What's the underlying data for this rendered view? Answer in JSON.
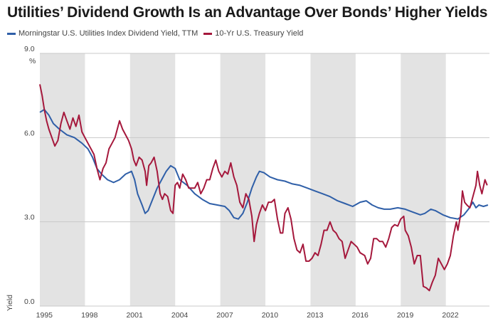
{
  "title": "Utilities’ Dividend Growth Is an Advantage Over Bonds’ Higher Yields",
  "chart_data": {
    "type": "line",
    "title": "Utilities’ Dividend Growth Is an Advantage Over Bonds’ Higher Yields",
    "xlabel": "",
    "ylabel": "Yield",
    "y_unit": "%",
    "xlim": [
      1994.7,
      2024.6
    ],
    "ylim": [
      0,
      9
    ],
    "y_ticks": [
      {
        "value": 0,
        "label": "0.0"
      },
      {
        "value": 3,
        "label": "3.0"
      },
      {
        "value": 6,
        "label": "6.0"
      },
      {
        "value": 9,
        "label": "9.0"
      }
    ],
    "x_ticks": [
      {
        "value": 1995,
        "label": "1995"
      },
      {
        "value": 1998,
        "label": "1998"
      },
      {
        "value": 2001,
        "label": "2001"
      },
      {
        "value": 2004,
        "label": "2004"
      },
      {
        "value": 2007,
        "label": "2007"
      },
      {
        "value": 2010,
        "label": "2010"
      },
      {
        "value": 2013,
        "label": "2013"
      },
      {
        "value": 2016,
        "label": "2016"
      },
      {
        "value": 2019,
        "label": "2019"
      },
      {
        "value": 2022,
        "label": "2022"
      }
    ],
    "shaded_bands": [
      [
        1994.7,
        1997.7
      ],
      [
        2000.7,
        2003.7
      ],
      [
        2006.7,
        2009.7
      ],
      [
        2012.7,
        2015.7
      ],
      [
        2018.7,
        2021.7
      ]
    ],
    "grid": "horizontal",
    "legend_position": "top-left",
    "series": [
      {
        "name": "Morningstar U.S. Utilities Index Dividend Yield, TTM",
        "color": "#2f5fa8",
        "points": [
          [
            1994.7,
            6.9
          ],
          [
            1995.0,
            7.0
          ],
          [
            1995.3,
            6.8
          ],
          [
            1995.6,
            6.5
          ],
          [
            1996.0,
            6.3
          ],
          [
            1996.5,
            6.1
          ],
          [
            1997.0,
            6.0
          ],
          [
            1997.5,
            5.8
          ],
          [
            1997.9,
            5.6
          ],
          [
            1998.2,
            5.3
          ],
          [
            1998.5,
            4.9
          ],
          [
            1998.8,
            4.7
          ],
          [
            1999.2,
            4.5
          ],
          [
            1999.6,
            4.4
          ],
          [
            2000.0,
            4.5
          ],
          [
            2000.4,
            4.7
          ],
          [
            2000.8,
            4.8
          ],
          [
            2001.0,
            4.5
          ],
          [
            2001.2,
            4.0
          ],
          [
            2001.5,
            3.6
          ],
          [
            2001.7,
            3.3
          ],
          [
            2001.9,
            3.4
          ],
          [
            2002.2,
            3.8
          ],
          [
            2002.5,
            4.2
          ],
          [
            2002.8,
            4.5
          ],
          [
            2003.1,
            4.8
          ],
          [
            2003.4,
            5.0
          ],
          [
            2003.7,
            4.9
          ],
          [
            2004.0,
            4.5
          ],
          [
            2004.5,
            4.3
          ],
          [
            2005.0,
            4.0
          ],
          [
            2005.5,
            3.8
          ],
          [
            2006.0,
            3.65
          ],
          [
            2006.5,
            3.6
          ],
          [
            2007.0,
            3.55
          ],
          [
            2007.3,
            3.4
          ],
          [
            2007.6,
            3.15
          ],
          [
            2007.9,
            3.1
          ],
          [
            2008.2,
            3.3
          ],
          [
            2008.5,
            3.7
          ],
          [
            2008.8,
            4.2
          ],
          [
            2009.1,
            4.6
          ],
          [
            2009.3,
            4.8
          ],
          [
            2009.6,
            4.75
          ],
          [
            2010.0,
            4.6
          ],
          [
            2010.5,
            4.5
          ],
          [
            2011.0,
            4.45
          ],
          [
            2011.5,
            4.35
          ],
          [
            2012.0,
            4.3
          ],
          [
            2012.5,
            4.2
          ],
          [
            2013.0,
            4.1
          ],
          [
            2013.5,
            4.0
          ],
          [
            2014.0,
            3.9
          ],
          [
            2014.5,
            3.75
          ],
          [
            2015.0,
            3.65
          ],
          [
            2015.5,
            3.55
          ],
          [
            2016.0,
            3.7
          ],
          [
            2016.4,
            3.75
          ],
          [
            2016.8,
            3.6
          ],
          [
            2017.2,
            3.5
          ],
          [
            2017.6,
            3.45
          ],
          [
            2018.0,
            3.45
          ],
          [
            2018.5,
            3.5
          ],
          [
            2019.0,
            3.45
          ],
          [
            2019.5,
            3.35
          ],
          [
            2020.0,
            3.25
          ],
          [
            2020.3,
            3.3
          ],
          [
            2020.7,
            3.45
          ],
          [
            2021.0,
            3.4
          ],
          [
            2021.5,
            3.25
          ],
          [
            2022.0,
            3.15
          ],
          [
            2022.5,
            3.1
          ],
          [
            2022.9,
            3.25
          ],
          [
            2023.2,
            3.45
          ],
          [
            2023.5,
            3.7
          ],
          [
            2023.7,
            3.5
          ],
          [
            2023.9,
            3.6
          ],
          [
            2024.2,
            3.55
          ],
          [
            2024.5,
            3.6
          ]
        ]
      },
      {
        "name": "10-Yr U.S. Treasury Yield",
        "color": "#a5183c",
        "points": [
          [
            1994.7,
            7.9
          ],
          [
            1994.85,
            7.5
          ],
          [
            1995.0,
            7.0
          ],
          [
            1995.15,
            6.6
          ],
          [
            1995.3,
            6.3
          ],
          [
            1995.5,
            6.0
          ],
          [
            1995.7,
            5.7
          ],
          [
            1995.9,
            5.9
          ],
          [
            1996.1,
            6.5
          ],
          [
            1996.3,
            6.9
          ],
          [
            1996.5,
            6.6
          ],
          [
            1996.7,
            6.3
          ],
          [
            1996.9,
            6.7
          ],
          [
            1997.1,
            6.4
          ],
          [
            1997.3,
            6.8
          ],
          [
            1997.5,
            6.2
          ],
          [
            1997.7,
            6.0
          ],
          [
            1997.9,
            5.8
          ],
          [
            1998.1,
            5.6
          ],
          [
            1998.3,
            5.4
          ],
          [
            1998.5,
            4.9
          ],
          [
            1998.7,
            4.5
          ],
          [
            1998.9,
            4.9
          ],
          [
            1999.1,
            5.1
          ],
          [
            1999.3,
            5.6
          ],
          [
            1999.5,
            5.8
          ],
          [
            1999.7,
            6.0
          ],
          [
            2000.0,
            6.6
          ],
          [
            2000.2,
            6.3
          ],
          [
            2000.4,
            6.1
          ],
          [
            2000.6,
            5.9
          ],
          [
            2000.8,
            5.6
          ],
          [
            2000.95,
            5.2
          ],
          [
            2001.1,
            5.0
          ],
          [
            2001.3,
            5.3
          ],
          [
            2001.5,
            5.2
          ],
          [
            2001.7,
            4.8
          ],
          [
            2001.8,
            4.3
          ],
          [
            2001.95,
            5.0
          ],
          [
            2002.1,
            5.1
          ],
          [
            2002.3,
            5.3
          ],
          [
            2002.5,
            4.8
          ],
          [
            2002.7,
            4.0
          ],
          [
            2002.85,
            3.8
          ],
          [
            2003.0,
            4.0
          ],
          [
            2003.2,
            3.9
          ],
          [
            2003.4,
            3.4
          ],
          [
            2003.55,
            3.3
          ],
          [
            2003.7,
            4.3
          ],
          [
            2003.85,
            4.4
          ],
          [
            2004.0,
            4.2
          ],
          [
            2004.2,
            4.7
          ],
          [
            2004.4,
            4.5
          ],
          [
            2004.6,
            4.2
          ],
          [
            2004.8,
            4.2
          ],
          [
            2005.0,
            4.2
          ],
          [
            2005.2,
            4.4
          ],
          [
            2005.4,
            4.0
          ],
          [
            2005.6,
            4.2
          ],
          [
            2005.8,
            4.5
          ],
          [
            2006.0,
            4.5
          ],
          [
            2006.2,
            4.9
          ],
          [
            2006.4,
            5.2
          ],
          [
            2006.6,
            4.8
          ],
          [
            2006.8,
            4.6
          ],
          [
            2007.0,
            4.8
          ],
          [
            2007.2,
            4.7
          ],
          [
            2007.4,
            5.1
          ],
          [
            2007.6,
            4.6
          ],
          [
            2007.8,
            4.3
          ],
          [
            2008.0,
            3.7
          ],
          [
            2008.2,
            3.5
          ],
          [
            2008.4,
            4.0
          ],
          [
            2008.6,
            3.8
          ],
          [
            2008.8,
            3.2
          ],
          [
            2008.95,
            2.3
          ],
          [
            2009.1,
            2.9
          ],
          [
            2009.3,
            3.3
          ],
          [
            2009.5,
            3.6
          ],
          [
            2009.7,
            3.4
          ],
          [
            2009.9,
            3.7
          ],
          [
            2010.1,
            3.7
          ],
          [
            2010.3,
            3.8
          ],
          [
            2010.5,
            3.1
          ],
          [
            2010.7,
            2.6
          ],
          [
            2010.85,
            2.6
          ],
          [
            2011.0,
            3.3
          ],
          [
            2011.2,
            3.5
          ],
          [
            2011.4,
            3.1
          ],
          [
            2011.6,
            2.4
          ],
          [
            2011.8,
            2.0
          ],
          [
            2012.0,
            1.9
          ],
          [
            2012.2,
            2.2
          ],
          [
            2012.4,
            1.6
          ],
          [
            2012.6,
            1.6
          ],
          [
            2012.8,
            1.7
          ],
          [
            2013.0,
            1.9
          ],
          [
            2013.2,
            1.8
          ],
          [
            2013.4,
            2.2
          ],
          [
            2013.6,
            2.7
          ],
          [
            2013.8,
            2.7
          ],
          [
            2014.0,
            3.0
          ],
          [
            2014.2,
            2.7
          ],
          [
            2014.4,
            2.6
          ],
          [
            2014.6,
            2.4
          ],
          [
            2014.8,
            2.3
          ],
          [
            2015.0,
            1.7
          ],
          [
            2015.2,
            2.0
          ],
          [
            2015.4,
            2.3
          ],
          [
            2015.6,
            2.2
          ],
          [
            2015.8,
            2.1
          ],
          [
            2016.0,
            1.9
          ],
          [
            2016.3,
            1.8
          ],
          [
            2016.5,
            1.5
          ],
          [
            2016.7,
            1.7
          ],
          [
            2016.9,
            2.4
          ],
          [
            2017.1,
            2.4
          ],
          [
            2017.3,
            2.3
          ],
          [
            2017.5,
            2.3
          ],
          [
            2017.7,
            2.1
          ],
          [
            2017.9,
            2.4
          ],
          [
            2018.1,
            2.8
          ],
          [
            2018.3,
            2.9
          ],
          [
            2018.5,
            2.85
          ],
          [
            2018.7,
            3.1
          ],
          [
            2018.9,
            3.2
          ],
          [
            2019.0,
            2.7
          ],
          [
            2019.2,
            2.5
          ],
          [
            2019.4,
            2.1
          ],
          [
            2019.6,
            1.5
          ],
          [
            2019.8,
            1.8
          ],
          [
            2020.0,
            1.8
          ],
          [
            2020.2,
            0.7
          ],
          [
            2020.4,
            0.65
          ],
          [
            2020.6,
            0.55
          ],
          [
            2020.8,
            0.85
          ],
          [
            2021.0,
            1.1
          ],
          [
            2021.2,
            1.7
          ],
          [
            2021.4,
            1.5
          ],
          [
            2021.6,
            1.3
          ],
          [
            2021.8,
            1.5
          ],
          [
            2022.0,
            1.8
          ],
          [
            2022.2,
            2.5
          ],
          [
            2022.4,
            3.0
          ],
          [
            2022.5,
            2.7
          ],
          [
            2022.7,
            3.3
          ],
          [
            2022.8,
            4.1
          ],
          [
            2022.95,
            3.7
          ],
          [
            2023.1,
            3.6
          ],
          [
            2023.3,
            3.5
          ],
          [
            2023.5,
            3.9
          ],
          [
            2023.7,
            4.3
          ],
          [
            2023.8,
            4.8
          ],
          [
            2023.95,
            4.3
          ],
          [
            2024.1,
            4.0
          ],
          [
            2024.3,
            4.5
          ],
          [
            2024.45,
            4.3
          ]
        ]
      }
    ]
  }
}
